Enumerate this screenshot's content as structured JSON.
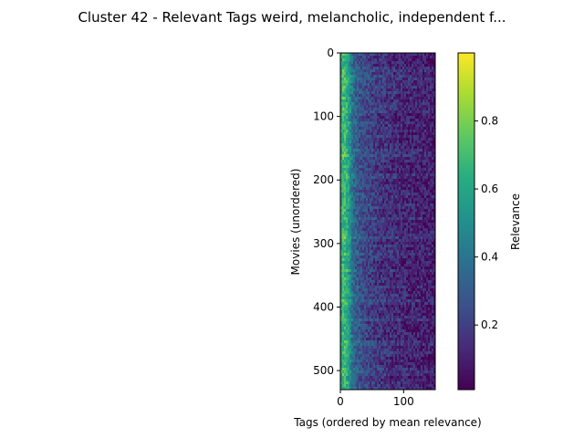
{
  "chart_data": {
    "type": "heatmap",
    "title": "Cluster 42 - Relevant Tags weird, melancholic, independent f...",
    "xlabel": "Tags (ordered by mean relevance)",
    "ylabel": "Movies (unordered)",
    "n_rows": 530,
    "n_cols": 150,
    "x_ticks": [
      0,
      100
    ],
    "y_ticks": [
      0,
      100,
      200,
      300,
      400,
      500
    ],
    "colorbar": {
      "label": "Relevance",
      "range": [
        0.01,
        1.0
      ],
      "ticks": [
        0.2,
        0.4,
        0.6,
        0.8
      ],
      "colormap": "viridis"
    },
    "relevance_profile": {
      "description_free": true,
      "col_mean_points": [
        [
          0,
          0.55
        ],
        [
          5,
          0.72
        ],
        [
          12,
          0.62
        ],
        [
          20,
          0.35
        ],
        [
          35,
          0.25
        ],
        [
          60,
          0.18
        ],
        [
          100,
          0.13
        ],
        [
          149,
          0.1
        ]
      ]
    }
  }
}
